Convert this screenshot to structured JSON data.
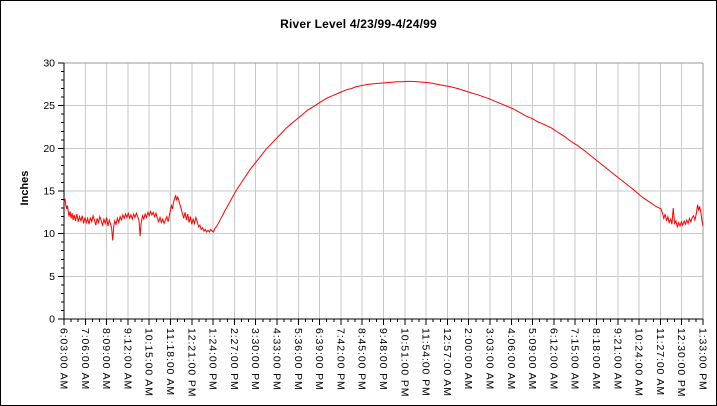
{
  "chart_data": {
    "type": "line",
    "title": "River Level 4/23/99-4/24/99",
    "xlabel": "",
    "ylabel": "Inches",
    "ylim": [
      0,
      30
    ],
    "y_major_step": 5,
    "y_minor_step": 1,
    "x_minor_divisions_per_interval": 3,
    "grid": true,
    "legend_position": "none",
    "x_range_minutes": [
      0,
      1890
    ],
    "x_label_interval_minutes": 63,
    "x_tick_labels": [
      "6:03:00 AM",
      "7:06:00 AM",
      "8:09:00 AM",
      "9:12:00 AM",
      "10:15:00 AM",
      "11:18:00 AM",
      "12:21:00 PM",
      "1:24:00 PM",
      "2:27:00 PM",
      "3:30:00 PM",
      "4:33:00 PM",
      "5:36:00 PM",
      "6:39:00 PM",
      "7:42:00 PM",
      "8:45:00 PM",
      "9:48:00 PM",
      "10:51:00 PM",
      "11:54:00 PM",
      "12:57:00 AM",
      "2:00:00 AM",
      "3:03:00 AM",
      "4:06:00 AM",
      "5:09:00 AM",
      "6:12:00 AM",
      "7:15:00 AM",
      "8:18:00 AM",
      "9:21:00 AM",
      "10:24:00 AM",
      "11:27:00 AM",
      "12:30:00 PM",
      "1:33:00 PM"
    ],
    "y_tick_labels": [
      "0",
      "5",
      "10",
      "15",
      "20",
      "25",
      "30"
    ],
    "series": [
      {
        "name": "River Level",
        "color": "#FF0000",
        "points": [
          [
            0,
            13.6
          ],
          [
            3,
            14.1
          ],
          [
            5,
            13.4
          ],
          [
            8,
            12.9
          ],
          [
            10,
            13.3
          ],
          [
            13,
            12.5
          ],
          [
            15,
            12.0
          ],
          [
            18,
            12.6
          ],
          [
            21,
            11.8
          ],
          [
            24,
            12.4
          ],
          [
            27,
            11.6
          ],
          [
            30,
            12.2
          ],
          [
            34,
            11.5
          ],
          [
            38,
            12.3
          ],
          [
            42,
            11.4
          ],
          [
            46,
            12.0
          ],
          [
            50,
            11.5
          ],
          [
            54,
            12.1
          ],
          [
            58,
            11.2
          ],
          [
            62,
            11.9
          ],
          [
            66,
            11.3
          ],
          [
            70,
            11.8
          ],
          [
            74,
            11.1
          ],
          [
            78,
            11.9
          ],
          [
            82,
            11.4
          ],
          [
            86,
            12.1
          ],
          [
            90,
            11.6
          ],
          [
            94,
            11.0
          ],
          [
            98,
            11.8
          ],
          [
            102,
            11.3
          ],
          [
            106,
            12.0
          ],
          [
            110,
            11.5
          ],
          [
            114,
            11.0
          ],
          [
            118,
            11.7
          ],
          [
            122,
            11.2
          ],
          [
            126,
            11.9
          ],
          [
            130,
            10.9
          ],
          [
            134,
            11.6
          ],
          [
            138,
            11.1
          ],
          [
            141,
            10.6
          ],
          [
            144,
            9.2
          ],
          [
            147,
            10.8
          ],
          [
            150,
            11.5
          ],
          [
            154,
            11.1
          ],
          [
            158,
            11.8
          ],
          [
            162,
            11.3
          ],
          [
            166,
            12.0
          ],
          [
            170,
            11.6
          ],
          [
            174,
            12.2
          ],
          [
            178,
            11.8
          ],
          [
            182,
            12.3
          ],
          [
            186,
            11.9
          ],
          [
            190,
            12.4
          ],
          [
            194,
            11.8
          ],
          [
            198,
            12.2
          ],
          [
            202,
            11.7
          ],
          [
            206,
            12.3
          ],
          [
            210,
            11.9
          ],
          [
            214,
            12.4
          ],
          [
            218,
            12.0
          ],
          [
            222,
            11.5
          ],
          [
            225,
            9.7
          ],
          [
            228,
            11.2
          ],
          [
            232,
            12.1
          ],
          [
            236,
            11.7
          ],
          [
            240,
            12.3
          ],
          [
            244,
            11.9
          ],
          [
            248,
            12.5
          ],
          [
            252,
            12.1
          ],
          [
            256,
            12.6
          ],
          [
            260,
            12.2
          ],
          [
            264,
            12.5
          ],
          [
            268,
            12.0
          ],
          [
            272,
            12.4
          ],
          [
            276,
            11.8
          ],
          [
            280,
            11.4
          ],
          [
            284,
            11.9
          ],
          [
            288,
            11.3
          ],
          [
            292,
            11.7
          ],
          [
            296,
            11.2
          ],
          [
            300,
            11.6
          ],
          [
            304,
            12.0
          ],
          [
            308,
            11.4
          ],
          [
            312,
            12.2
          ],
          [
            315,
            12.8
          ],
          [
            318,
            13.3
          ],
          [
            321,
            12.9
          ],
          [
            324,
            13.7
          ],
          [
            327,
            14.1
          ],
          [
            330,
            14.5
          ],
          [
            333,
            13.9
          ],
          [
            336,
            14.3
          ],
          [
            339,
            14.0
          ],
          [
            342,
            13.5
          ],
          [
            346,
            13.0
          ],
          [
            350,
            12.4
          ],
          [
            354,
            11.8
          ],
          [
            358,
            12.5
          ],
          [
            362,
            11.6
          ],
          [
            366,
            12.3
          ],
          [
            370,
            11.3
          ],
          [
            374,
            12.0
          ],
          [
            378,
            11.1
          ],
          [
            382,
            11.7
          ],
          [
            386,
            11.2
          ],
          [
            390,
            11.9
          ],
          [
            394,
            11.4
          ],
          [
            398,
            10.8
          ],
          [
            402,
            11.0
          ],
          [
            406,
            10.5
          ],
          [
            410,
            10.7
          ],
          [
            414,
            10.3
          ],
          [
            418,
            10.5
          ],
          [
            422,
            10.2
          ],
          [
            426,
            10.4
          ],
          [
            430,
            10.2
          ],
          [
            434,
            10.5
          ],
          [
            438,
            10.3
          ],
          [
            442,
            10.2
          ],
          [
            446,
            10.6
          ],
          [
            452,
            10.9
          ],
          [
            458,
            11.3
          ],
          [
            464,
            11.8
          ],
          [
            470,
            12.2
          ],
          [
            476,
            12.7
          ],
          [
            482,
            13.1
          ],
          [
            490,
            13.7
          ],
          [
            500,
            14.4
          ],
          [
            510,
            15.1
          ],
          [
            520,
            15.7
          ],
          [
            530,
            16.3
          ],
          [
            540,
            16.9
          ],
          [
            550,
            17.5
          ],
          [
            562,
            18.1
          ],
          [
            574,
            18.7
          ],
          [
            586,
            19.3
          ],
          [
            598,
            19.9
          ],
          [
            610,
            20.4
          ],
          [
            622,
            20.9
          ],
          [
            634,
            21.4
          ],
          [
            646,
            21.9
          ],
          [
            658,
            22.4
          ],
          [
            670,
            22.8
          ],
          [
            682,
            23.2
          ],
          [
            694,
            23.6
          ],
          [
            706,
            24.0
          ],
          [
            718,
            24.4
          ],
          [
            730,
            24.7
          ],
          [
            742,
            25.0
          ],
          [
            754,
            25.3
          ],
          [
            766,
            25.6
          ],
          [
            778,
            25.9
          ],
          [
            790,
            26.1
          ],
          [
            802,
            26.3
          ],
          [
            814,
            26.5
          ],
          [
            826,
            26.7
          ],
          [
            838,
            26.9
          ],
          [
            850,
            27.0
          ],
          [
            862,
            27.2
          ],
          [
            874,
            27.3
          ],
          [
            886,
            27.4
          ],
          [
            898,
            27.5
          ],
          [
            912,
            27.55
          ],
          [
            926,
            27.6
          ],
          [
            940,
            27.65
          ],
          [
            955,
            27.7
          ],
          [
            970,
            27.75
          ],
          [
            985,
            27.8
          ],
          [
            1000,
            27.8
          ],
          [
            1015,
            27.85
          ],
          [
            1030,
            27.85
          ],
          [
            1045,
            27.8
          ],
          [
            1065,
            27.75
          ],
          [
            1085,
            27.65
          ],
          [
            1105,
            27.5
          ],
          [
            1125,
            27.35
          ],
          [
            1145,
            27.2
          ],
          [
            1165,
            27.0
          ],
          [
            1185,
            26.75
          ],
          [
            1204,
            26.5
          ],
          [
            1222,
            26.3
          ],
          [
            1240,
            26.05
          ],
          [
            1258,
            25.8
          ],
          [
            1276,
            25.5
          ],
          [
            1294,
            25.2
          ],
          [
            1312,
            24.9
          ],
          [
            1330,
            24.6
          ],
          [
            1348,
            24.2
          ],
          [
            1366,
            23.8
          ],
          [
            1384,
            23.5
          ],
          [
            1402,
            23.1
          ],
          [
            1420,
            22.8
          ],
          [
            1441,
            22.4
          ],
          [
            1460,
            21.9
          ],
          [
            1480,
            21.4
          ],
          [
            1500,
            20.8
          ],
          [
            1520,
            20.3
          ],
          [
            1540,
            19.7
          ],
          [
            1559,
            19.1
          ],
          [
            1578,
            18.5
          ],
          [
            1597,
            17.9
          ],
          [
            1616,
            17.3
          ],
          [
            1635,
            16.7
          ],
          [
            1654,
            16.1
          ],
          [
            1677,
            15.4
          ],
          [
            1695,
            14.8
          ],
          [
            1713,
            14.2
          ],
          [
            1736,
            13.6
          ],
          [
            1750,
            13.2
          ],
          [
            1766,
            12.9
          ],
          [
            1770,
            12.4
          ],
          [
            1774,
            11.8
          ],
          [
            1778,
            12.3
          ],
          [
            1782,
            11.5
          ],
          [
            1786,
            12.0
          ],
          [
            1790,
            11.3
          ],
          [
            1794,
            11.7
          ],
          [
            1798,
            11.1
          ],
          [
            1802,
            13.0
          ],
          [
            1806,
            11.2
          ],
          [
            1810,
            11.5
          ],
          [
            1814,
            10.8
          ],
          [
            1818,
            11.3
          ],
          [
            1822,
            10.9
          ],
          [
            1826,
            11.4
          ],
          [
            1830,
            11.0
          ],
          [
            1834,
            11.5
          ],
          [
            1838,
            11.1
          ],
          [
            1842,
            11.6
          ],
          [
            1846,
            11.2
          ],
          [
            1850,
            11.8
          ],
          [
            1854,
            11.4
          ],
          [
            1858,
            11.9
          ],
          [
            1862,
            12.1
          ],
          [
            1866,
            11.6
          ],
          [
            1870,
            12.3
          ],
          [
            1874,
            13.4
          ],
          [
            1877,
            12.7
          ],
          [
            1880,
            13.2
          ],
          [
            1884,
            12.4
          ],
          [
            1887,
            11.5
          ],
          [
            1890,
            10.9
          ]
        ]
      }
    ]
  },
  "colors": {
    "line": "#FF0000",
    "gridline": "#C9C9C9",
    "frame": "#999999",
    "axis": "#000000",
    "background": "#FFFFFF",
    "text": "#000000",
    "border": "#000000"
  }
}
